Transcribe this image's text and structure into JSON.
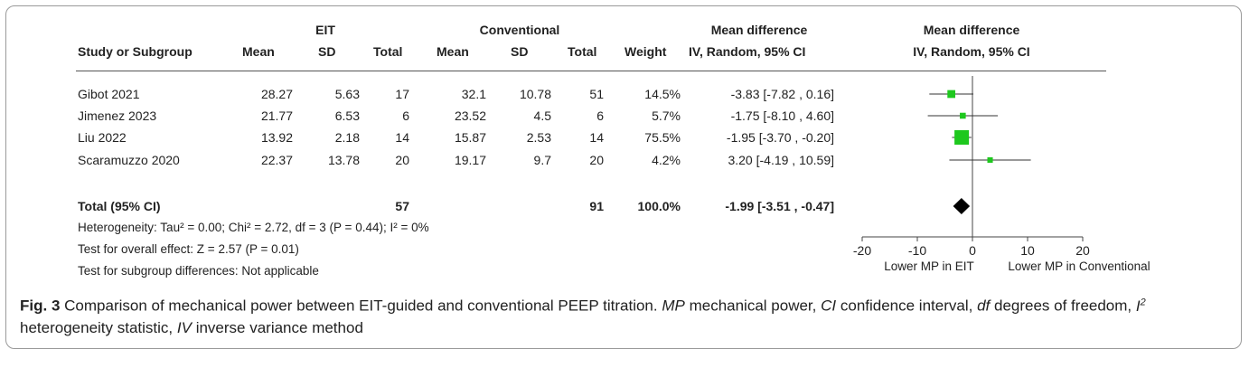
{
  "header": {
    "group1": "EIT",
    "group2": "Conventional",
    "md_title": "Mean difference",
    "md_subtitle": "IV, Random, 95% CI",
    "plot_title": "Mean difference",
    "plot_subtitle": "IV, Random, 95% CI",
    "col_study": "Study or Subgroup",
    "col_mean1": "Mean",
    "col_sd1": "SD",
    "col_total1": "Total",
    "col_mean2": "Mean",
    "col_sd2": "SD",
    "col_total2": "Total",
    "col_weight": "Weight"
  },
  "studies": [
    {
      "name": "Gibot 2021",
      "mean1": "28.27",
      "sd1": "5.63",
      "total1": "17",
      "mean2": "32.1",
      "sd2": "10.78",
      "total2": "51",
      "weight": "14.5%",
      "ci": "-3.83 [-7.82 , 0.16]"
    },
    {
      "name": "Jimenez 2023",
      "mean1": "21.77",
      "sd1": "6.53",
      "total1": "6",
      "mean2": "23.52",
      "sd2": "4.5",
      "total2": "6",
      "weight": "5.7%",
      "ci": "-1.75 [-8.10 , 4.60]"
    },
    {
      "name": "Liu 2022",
      "mean1": "13.92",
      "sd1": "2.18",
      "total1": "14",
      "mean2": "15.87",
      "sd2": "2.53",
      "total2": "14",
      "weight": "75.5%",
      "ci": "-1.95 [-3.70 , -0.20]"
    },
    {
      "name": "Scaramuzzo 2020",
      "mean1": "22.37",
      "sd1": "13.78",
      "total1": "20",
      "mean2": "19.17",
      "sd2": "9.7",
      "total2": "20",
      "weight": "4.2%",
      "ci": "3.20 [-4.19 , 10.59]"
    }
  ],
  "total": {
    "label": "Total (95% CI)",
    "total1": "57",
    "total2": "91",
    "weight": "100.0%",
    "ci": "-1.99 [-3.51 , -0.47]"
  },
  "notes": {
    "heterogeneity": "Heterogeneity: Tau² = 0.00; Chi² = 2.72, df = 3 (P = 0.44); I² = 0%",
    "overall": "Test for overall effect: Z = 2.57 (P = 0.01)",
    "subgroup": "Test for subgroup differences: Not applicable"
  },
  "caption": {
    "label": "Fig. 3",
    "text1": "Comparison of mechanical power between EIT-guided and conventional PEEP titration.",
    "mp": "MP",
    "mp_def": "mechanical power,",
    "ci": "CI",
    "ci_def": "confidence interval,",
    "df": "df",
    "df_def": "degrees of freedom,",
    "i2": "I",
    "i2_sup": "2",
    "i2_def": "heterogeneity statistic,",
    "iv": "IV",
    "iv_def": "inverse variance method"
  },
  "chart_data": {
    "type": "forest",
    "x_range": [
      -20,
      20
    ],
    "x_ticks": [
      "-20",
      "-10",
      "0",
      "10",
      "20"
    ],
    "x_tick_values": [
      -20,
      -10,
      0,
      10,
      20
    ],
    "left_label": "Lower MP in EIT",
    "right_label": "Lower MP in Conventional",
    "marker_color": "#1ec81e",
    "studies": [
      {
        "name": "Gibot 2021",
        "estimate": -3.83,
        "lower": -7.82,
        "upper": 0.16,
        "weight": 14.5
      },
      {
        "name": "Jimenez 2023",
        "estimate": -1.75,
        "lower": -8.1,
        "upper": 4.6,
        "weight": 5.7
      },
      {
        "name": "Liu 2022",
        "estimate": -1.95,
        "lower": -3.7,
        "upper": -0.2,
        "weight": 75.5
      },
      {
        "name": "Scaramuzzo 2020",
        "estimate": 3.2,
        "lower": -4.19,
        "upper": 10.59,
        "weight": 4.2
      }
    ],
    "pooled": {
      "estimate": -1.99,
      "lower": -3.51,
      "upper": -0.47
    }
  }
}
